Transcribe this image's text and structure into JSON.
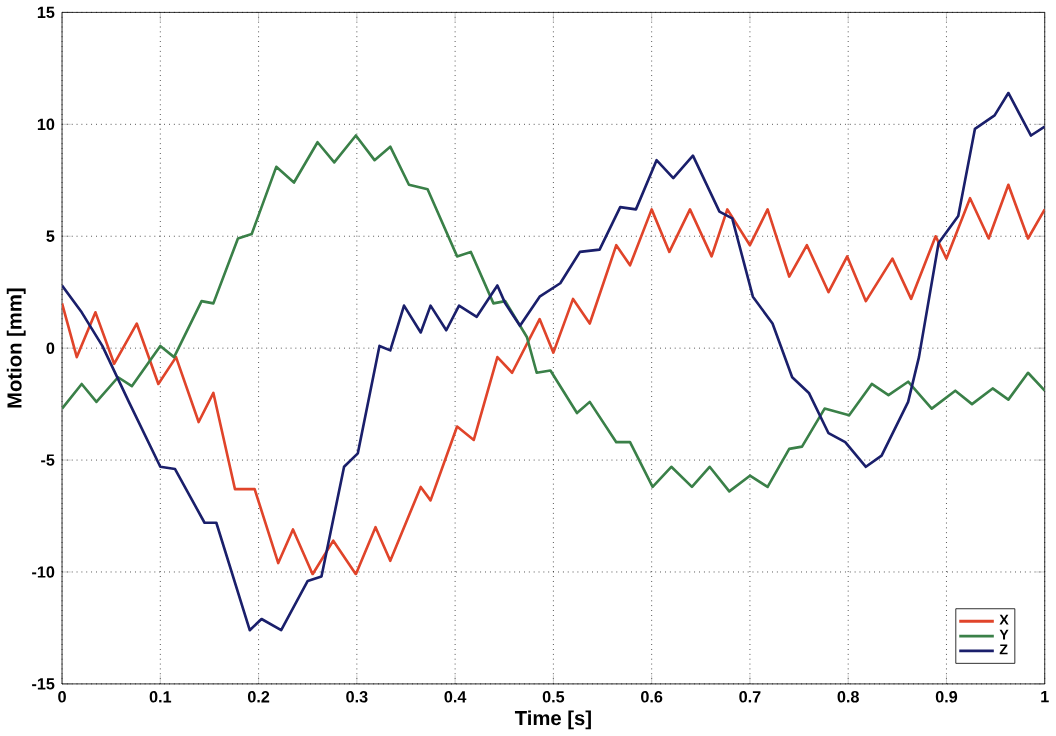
{
  "chart_data": {
    "type": "line",
    "xlabel": "Time [s]",
    "ylabel": "Motion [mm]",
    "xlim": [
      0,
      1
    ],
    "ylim": [
      -15,
      15
    ],
    "xticks": [
      0,
      0.1,
      0.2,
      0.3,
      0.4,
      0.5,
      0.6,
      0.7,
      0.8,
      0.9,
      1
    ],
    "yticks": [
      -15,
      -10,
      -5,
      0,
      5,
      10,
      15
    ],
    "grid": true,
    "legend": "bottom right",
    "line_style": "solid",
    "marker": "none",
    "series": [
      {
        "name": "X",
        "color": "#e0442a",
        "x": [
          0,
          0.015,
          0.034,
          0.053,
          0.076,
          0.098,
          0.116,
          0.139,
          0.154,
          0.176,
          0.196,
          0.22,
          0.235,
          0.255,
          0.276,
          0.299,
          0.319,
          0.334,
          0.365,
          0.375,
          0.402,
          0.419,
          0.443,
          0.458,
          0.486,
          0.5,
          0.52,
          0.537,
          0.564,
          0.578,
          0.6,
          0.618,
          0.639,
          0.661,
          0.677,
          0.7,
          0.718,
          0.74,
          0.758,
          0.78,
          0.799,
          0.818,
          0.845,
          0.864,
          0.889,
          0.9,
          0.924,
          0.943,
          0.963,
          0.983,
          1
        ],
        "values": [
          2.0,
          -0.4,
          1.6,
          -0.7,
          1.1,
          -1.6,
          -0.4,
          -3.3,
          -2.0,
          -6.3,
          -6.3,
          -9.6,
          -8.1,
          -10.1,
          -8.6,
          -10.1,
          -8.0,
          -9.5,
          -6.2,
          -6.8,
          -3.5,
          -4.1,
          -0.4,
          -1.1,
          1.3,
          -0.2,
          2.2,
          1.1,
          4.6,
          3.7,
          6.2,
          4.3,
          6.2,
          4.1,
          6.2,
          4.6,
          6.2,
          3.2,
          4.6,
          2.5,
          4.1,
          2.1,
          4.0,
          2.2,
          5.0,
          4.0,
          6.7,
          4.9,
          7.3,
          4.9,
          6.2
        ]
      },
      {
        "name": "Y",
        "color": "#3a8048",
        "x": [
          0,
          0.02,
          0.035,
          0.057,
          0.071,
          0.1,
          0.114,
          0.142,
          0.154,
          0.179,
          0.193,
          0.218,
          0.236,
          0.26,
          0.277,
          0.299,
          0.318,
          0.334,
          0.353,
          0.372,
          0.402,
          0.416,
          0.439,
          0.451,
          0.473,
          0.483,
          0.497,
          0.524,
          0.537,
          0.564,
          0.578,
          0.601,
          0.62,
          0.641,
          0.659,
          0.679,
          0.7,
          0.718,
          0.74,
          0.753,
          0.776,
          0.801,
          0.824,
          0.841,
          0.861,
          0.885,
          0.909,
          0.926,
          0.947,
          0.963,
          0.983,
          1
        ],
        "values": [
          -2.7,
          -1.6,
          -2.4,
          -1.3,
          -1.7,
          0.1,
          -0.4,
          2.1,
          2.0,
          4.9,
          5.1,
          8.1,
          7.4,
          9.2,
          8.3,
          9.5,
          8.4,
          9.0,
          7.3,
          7.1,
          4.1,
          4.3,
          2.0,
          2.1,
          0.5,
          -1.1,
          -1.0,
          -2.9,
          -2.4,
          -4.2,
          -4.2,
          -6.2,
          -5.3,
          -6.2,
          -5.3,
          -6.4,
          -5.7,
          -6.2,
          -4.5,
          -4.4,
          -2.7,
          -3.0,
          -1.6,
          -2.1,
          -1.5,
          -2.7,
          -1.9,
          -2.5,
          -1.8,
          -2.3,
          -1.1,
          -1.9
        ]
      },
      {
        "name": "Z",
        "color": "#1a1f6b",
        "x": [
          0,
          0.02,
          0.041,
          0.068,
          0.1,
          0.115,
          0.145,
          0.157,
          0.191,
          0.203,
          0.223,
          0.25,
          0.264,
          0.287,
          0.301,
          0.323,
          0.334,
          0.348,
          0.365,
          0.375,
          0.391,
          0.404,
          0.422,
          0.443,
          0.451,
          0.466,
          0.486,
          0.507,
          0.527,
          0.547,
          0.568,
          0.584,
          0.605,
          0.622,
          0.642,
          0.669,
          0.682,
          0.703,
          0.723,
          0.743,
          0.76,
          0.78,
          0.797,
          0.818,
          0.834,
          0.861,
          0.872,
          0.892,
          0.912,
          0.929,
          0.949,
          0.963,
          0.986,
          1
        ],
        "values": [
          2.8,
          1.6,
          0.1,
          -2.4,
          -5.3,
          -5.4,
          -7.8,
          -7.8,
          -12.6,
          -12.1,
          -12.6,
          -10.4,
          -10.2,
          -5.3,
          -4.7,
          0.1,
          -0.1,
          1.9,
          0.7,
          1.9,
          0.8,
          1.9,
          1.4,
          2.8,
          2.0,
          1.0,
          2.3,
          2.9,
          4.3,
          4.4,
          6.3,
          6.2,
          8.4,
          7.6,
          8.6,
          6.1,
          5.8,
          2.3,
          1.1,
          -1.3,
          -2.0,
          -3.8,
          -4.2,
          -5.3,
          -4.8,
          -2.4,
          -0.4,
          4.7,
          5.9,
          9.8,
          10.4,
          11.4,
          9.5,
          9.9
        ]
      }
    ]
  }
}
